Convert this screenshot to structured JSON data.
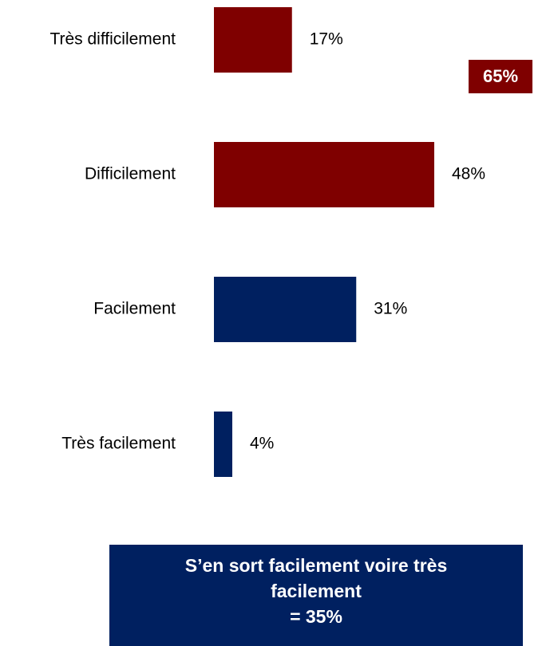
{
  "chart_data": {
    "type": "bar",
    "orientation": "horizontal",
    "categories": [
      "Très difficilement",
      "Difficilement",
      "Facilement",
      "Très facilement"
    ],
    "values": [
      17,
      48,
      31,
      4
    ],
    "value_labels": [
      "17%",
      "48%",
      "31%",
      "4%"
    ],
    "colors": [
      "#7f0000",
      "#7f0000",
      "#002060",
      "#002060"
    ],
    "annotations": {
      "difficult_total": {
        "text": "65%",
        "color": "#7f0000"
      },
      "easy_total": {
        "lines": [
          "S’en sort facilement voire très facilement",
          "= 35%"
        ],
        "color": "#002060"
      }
    }
  }
}
